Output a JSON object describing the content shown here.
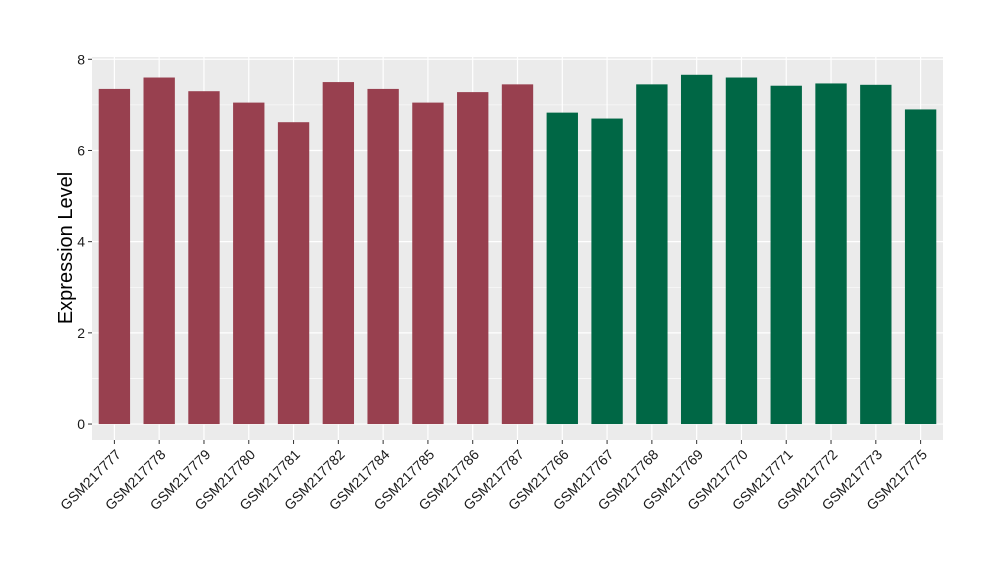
{
  "chart_data": {
    "type": "bar",
    "title": "",
    "xlabel": "",
    "ylabel": "Expression Level",
    "ylim": [
      -0.35,
      8.05
    ],
    "yticks": [
      0,
      2,
      4,
      6,
      8
    ],
    "grid": true,
    "legend": "none",
    "categories": [
      "GSM217777",
      "GSM217778",
      "GSM217779",
      "GSM217780",
      "GSM217781",
      "GSM217782",
      "GSM217784",
      "GSM217785",
      "GSM217786",
      "GSM217787",
      "GSM217766",
      "GSM217767",
      "GSM217768",
      "GSM217769",
      "GSM217770",
      "GSM217771",
      "GSM217772",
      "GSM217773",
      "GSM217775"
    ],
    "values": [
      7.35,
      7.6,
      7.3,
      7.05,
      6.62,
      7.5,
      7.35,
      7.05,
      7.28,
      7.45,
      6.83,
      6.7,
      7.45,
      7.66,
      7.6,
      7.42,
      7.47,
      7.44,
      6.9
    ],
    "bar_colors": [
      "#98404f",
      "#98404f",
      "#98404f",
      "#98404f",
      "#98404f",
      "#98404f",
      "#98404f",
      "#98404f",
      "#98404f",
      "#98404f",
      "#006745",
      "#006745",
      "#006745",
      "#006745",
      "#006745",
      "#006745",
      "#006745",
      "#006745",
      "#006745"
    ],
    "panel_background": "#ebebeb",
    "grid_color": "#ffffff"
  }
}
